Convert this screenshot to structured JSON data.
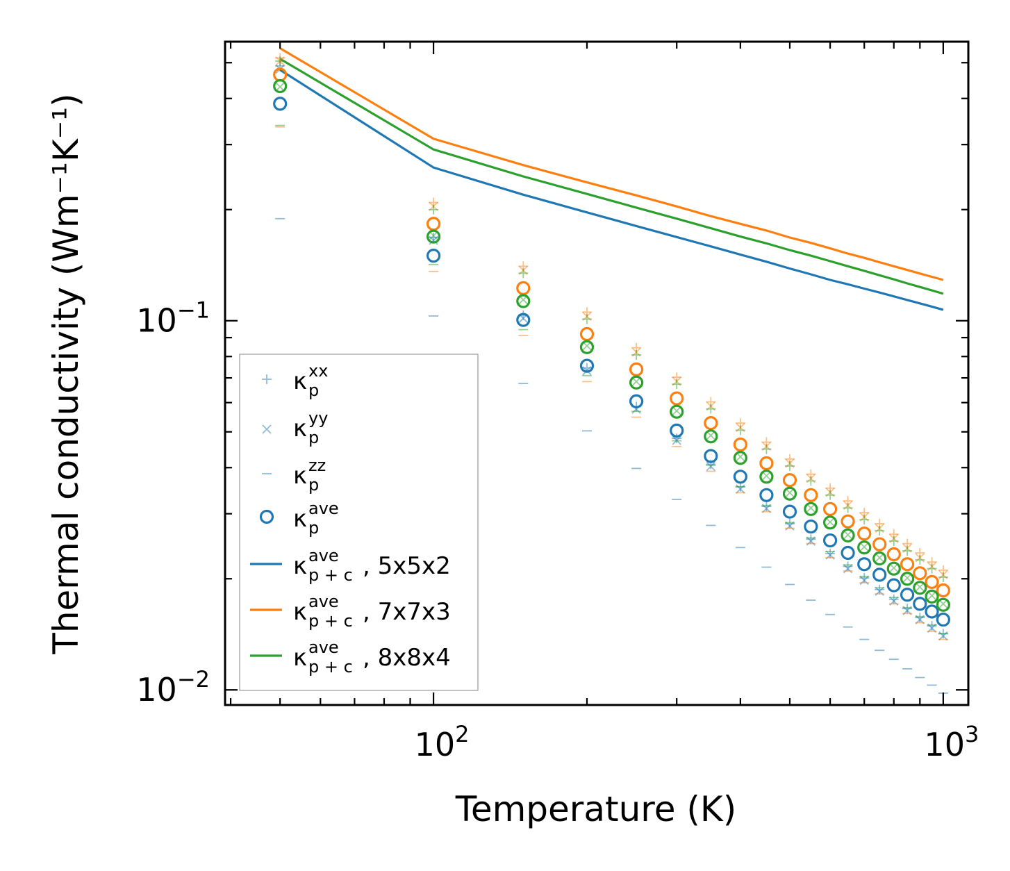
{
  "chart_data": {
    "type": "scatter",
    "scale": {
      "x": "log",
      "y": "log"
    },
    "xlabel": "Temperature (K)",
    "ylabel": "Thermal conductivity (Wm⁻¹K⁻¹)",
    "xlim": [
      39,
      1120
    ],
    "ylim": [
      0.0091,
      0.57
    ],
    "x_ticks": [
      {
        "value": 100,
        "base": "10",
        "exp": "2"
      },
      {
        "value": 1000,
        "base": "10",
        "exp": "3"
      }
    ],
    "y_ticks": [
      {
        "value": 0.01,
        "base": "10",
        "exp": "−2"
      },
      {
        "value": 0.1,
        "base": "10",
        "exp": "−1"
      }
    ],
    "x": [
      50,
      100,
      150,
      200,
      250,
      300,
      350,
      400,
      450,
      500,
      550,
      600,
      650,
      700,
      750,
      800,
      850,
      900,
      950,
      1000
    ],
    "series": [
      {
        "name": "5x5x2",
        "color": "#1f77b4",
        "line": [
          0.478,
          0.26,
          0.2195,
          0.1965,
          0.1805,
          0.1685,
          0.159,
          0.151,
          0.1445,
          0.1385,
          0.1335,
          0.129,
          0.1255,
          0.1222,
          0.1192,
          0.1164,
          0.1138,
          0.1114,
          0.1092,
          0.107
        ],
        "xx": [
          0.49,
          0.168,
          0.1035,
          0.0745,
          0.0585,
          0.048,
          0.0408,
          0.0355,
          0.0314,
          0.0282,
          0.0256,
          0.0234,
          0.0216,
          0.0201,
          0.0187,
          0.0176,
          0.0166,
          0.0157,
          0.0149,
          0.0142
        ],
        "yy": [
          0.48,
          0.165,
          0.1015,
          0.0732,
          0.0576,
          0.0474,
          0.0403,
          0.035,
          0.031,
          0.0278,
          0.0253,
          0.0232,
          0.0213,
          0.0198,
          0.0185,
          0.0174,
          0.0164,
          0.0155,
          0.0147,
          0.014
        ],
        "zz": [
          0.189,
          0.103,
          0.0676,
          0.0503,
          0.0398,
          0.0328,
          0.0279,
          0.0243,
          0.0215,
          0.0193,
          0.0175,
          0.016,
          0.0148,
          0.0137,
          0.0128,
          0.0121,
          0.0114,
          0.0108,
          0.0103,
          0.0098
        ],
        "ave": [
          0.387,
          0.15,
          0.1005,
          0.0755,
          0.0605,
          0.0504,
          0.043,
          0.0378,
          0.0337,
          0.0304,
          0.0277,
          0.0254,
          0.0235,
          0.0219,
          0.0205,
          0.0192,
          0.0181,
          0.0171,
          0.0163,
          0.0155
        ]
      },
      {
        "name": "7x7x3",
        "color": "#ff7f0e",
        "line": [
          0.547,
          0.311,
          0.264,
          0.237,
          0.2185,
          0.204,
          0.192,
          0.183,
          0.1755,
          0.168,
          0.1625,
          0.157,
          0.152,
          0.148,
          0.144,
          0.1405,
          0.1372,
          0.1342,
          0.1315,
          0.129
        ],
        "xx": [
          0.515,
          0.209,
          0.1405,
          0.1055,
          0.0845,
          0.0703,
          0.0603,
          0.0528,
          0.0469,
          0.0422,
          0.0384,
          0.0352,
          0.0325,
          0.0302,
          0.0282,
          0.0264,
          0.0249,
          0.0235,
          0.0222,
          0.0211
        ],
        "yy": [
          0.505,
          0.204,
          0.137,
          0.1028,
          0.0822,
          0.0685,
          0.0587,
          0.0514,
          0.0457,
          0.0411,
          0.0374,
          0.0343,
          0.0316,
          0.0294,
          0.0274,
          0.0257,
          0.0242,
          0.0228,
          0.0216,
          0.0205
        ],
        "zz": [
          0.335,
          0.136,
          0.0912,
          0.0684,
          0.0548,
          0.0456,
          0.0391,
          0.0342,
          0.0304,
          0.0274,
          0.0249,
          0.0228,
          0.021,
          0.0195,
          0.0182,
          0.0171,
          0.0161,
          0.0152,
          0.0144,
          0.0137
        ],
        "ave": [
          0.464,
          0.183,
          0.1225,
          0.092,
          0.0738,
          0.0616,
          0.0528,
          0.0462,
          0.0411,
          0.037,
          0.0337,
          0.0309,
          0.0286,
          0.0265,
          0.0248,
          0.0233,
          0.0219,
          0.0207,
          0.0196,
          0.0186
        ]
      },
      {
        "name": "8x8x4",
        "color": "#2ca02c",
        "line": [
          0.512,
          0.291,
          0.246,
          0.2205,
          0.2025,
          0.189,
          0.178,
          0.169,
          0.162,
          0.1553,
          0.15,
          0.145,
          0.1405,
          0.1365,
          0.1328,
          0.1294,
          0.1262,
          0.1234,
          0.1208,
          0.1183
        ],
        "xx": [
          0.505,
          0.2,
          0.1345,
          0.101,
          0.0808,
          0.0673,
          0.0577,
          0.0505,
          0.0449,
          0.0404,
          0.0368,
          0.0337,
          0.0311,
          0.0289,
          0.027,
          0.0253,
          0.0238,
          0.0225,
          0.0213,
          0.0202
        ],
        "yy": [
          0.43,
          0.17,
          0.114,
          0.0855,
          0.0684,
          0.057,
          0.0489,
          0.0428,
          0.038,
          0.0342,
          0.0311,
          0.0285,
          0.0263,
          0.0244,
          0.0228,
          0.0214,
          0.0201,
          0.019,
          0.018,
          0.0171
        ],
        "zz": [
          0.338,
          0.142,
          0.0946,
          0.071,
          0.0568,
          0.0473,
          0.0406,
          0.0355,
          0.0316,
          0.0284,
          0.0258,
          0.0237,
          0.0218,
          0.0203,
          0.0189,
          0.0178,
          0.0167,
          0.0158,
          0.015,
          0.0142
        ],
        "ave": [
          0.432,
          0.169,
          0.113,
          0.0848,
          0.068,
          0.0567,
          0.0486,
          0.0425,
          0.0378,
          0.034,
          0.0309,
          0.0284,
          0.0262,
          0.0243,
          0.0227,
          0.0213,
          0.02,
          0.0189,
          0.0179,
          0.017
        ]
      }
    ],
    "legend": {
      "placement": "lower-left",
      "entries": [
        {
          "marker": "plus",
          "color": "#1f77b4",
          "base": "κ",
          "sub": "p",
          "sup": "xx",
          "suffix": ""
        },
        {
          "marker": "cross",
          "color": "#1f77b4",
          "base": "κ",
          "sub": "p",
          "sup": "yy",
          "suffix": ""
        },
        {
          "marker": "dash",
          "color": "#1f77b4",
          "base": "κ",
          "sub": "p",
          "sup": "zz",
          "suffix": ""
        },
        {
          "marker": "circle",
          "color": "#1f77b4",
          "base": "κ",
          "sub": "p",
          "sup": "ave",
          "suffix": ""
        },
        {
          "marker": "line",
          "color": "#1f77b4",
          "base": "κ",
          "sub": "p + c",
          "sup": "ave",
          "suffix": ", 5x5x2"
        },
        {
          "marker": "line",
          "color": "#ff7f0e",
          "base": "κ",
          "sub": "p + c",
          "sup": "ave",
          "suffix": ", 7x7x3"
        },
        {
          "marker": "line",
          "color": "#2ca02c",
          "base": "κ",
          "sub": "p + c",
          "sup": "ave",
          "suffix": ", 8x8x4"
        }
      ]
    }
  }
}
